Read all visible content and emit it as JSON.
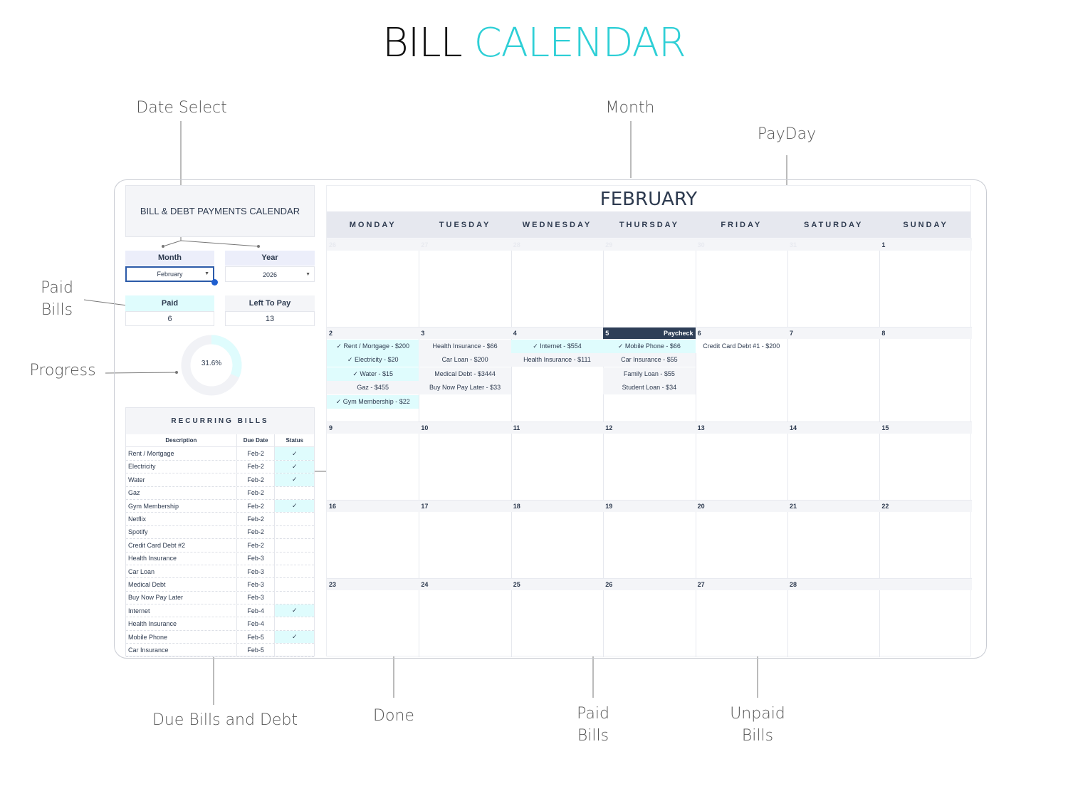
{
  "title": {
    "word1": "BILL",
    "word2": "CALENDAR"
  },
  "annotations": {
    "date_select": "Date Select",
    "month": "Month",
    "payday": "PayDay",
    "paid_bills_left": "Paid\nBills",
    "progress": "Progress",
    "due_bills": "Due Bills and Debt",
    "done": "Done",
    "paid_bills": "Paid\nBills",
    "unpaid_bills": "Unpaid\nBills"
  },
  "sidebar": {
    "heading": "BILL & DEBT PAYMENTS CALENDAR",
    "month_label": "Month",
    "month_value": "February",
    "year_label": "Year",
    "year_value": "2026",
    "paid_label": "Paid",
    "paid_value": "6",
    "left_label": "Left To Pay",
    "left_value": "13",
    "progress": "31.6%",
    "progress_fraction": 0.316,
    "recurring": {
      "title": "RECURRING BILLS",
      "headers": [
        "Description",
        "Due Date",
        "Status"
      ],
      "rows": [
        [
          "Rent / Mortgage",
          "Feb-2",
          true
        ],
        [
          "Electricity",
          "Feb-2",
          true
        ],
        [
          "Water",
          "Feb-2",
          true
        ],
        [
          "Gaz",
          "Feb-2",
          false
        ],
        [
          "Gym Membership",
          "Feb-2",
          true
        ],
        [
          "Netflix",
          "Feb-2",
          false
        ],
        [
          "Spotify",
          "Feb-2",
          false
        ],
        [
          "Credit Card Debt #2",
          "Feb-2",
          false
        ],
        [
          "Health Insurance",
          "Feb-3",
          false
        ],
        [
          "Car Loan",
          "Feb-3",
          false
        ],
        [
          "Medical Debt",
          "Feb-3",
          false
        ],
        [
          "Buy Now Pay Later",
          "Feb-3",
          false
        ],
        [
          "Internet",
          "Feb-4",
          true
        ],
        [
          "Health Insurance",
          "Feb-4",
          false
        ],
        [
          "Mobile Phone",
          "Feb-5",
          true
        ],
        [
          "Car Insurance",
          "Feb-5",
          false
        ]
      ],
      "check": "✓"
    }
  },
  "calendar": {
    "month": "FEBRUARY",
    "days": [
      "MONDAY",
      "TUESDAY",
      "WEDNESDAY",
      "THURSDAY",
      "FRIDAY",
      "SATURDAY",
      "SUNDAY"
    ],
    "weeks": [
      [
        "26",
        "27",
        "28",
        "29",
        "30",
        "31",
        "1"
      ],
      [
        "2",
        "3",
        "4",
        "5",
        "6",
        "7",
        "8"
      ],
      [
        "9",
        "10",
        "11",
        "12",
        "13",
        "14",
        "15"
      ],
      [
        "16",
        "17",
        "18",
        "19",
        "20",
        "21",
        "22"
      ],
      [
        "23",
        "24",
        "25",
        "26",
        "27",
        "28",
        ""
      ]
    ],
    "payday": {
      "day": "5",
      "label": "Paycheck"
    },
    "bills": {
      "2": [
        [
          "Rent / Mortgage - $200",
          true
        ],
        [
          "Electricity - $20",
          true
        ],
        [
          "Water - $15",
          true
        ],
        [
          "Gaz - $455",
          false
        ],
        [
          "Gym Membership - $22",
          true
        ]
      ],
      "3": [
        [
          "Health Insurance - $66",
          false
        ],
        [
          "Car Loan - $200",
          false
        ],
        [
          "Medical Debt - $3444",
          false
        ],
        [
          "Buy Now Pay Later - $33",
          false
        ]
      ],
      "4": [
        [
          "Internet - $554",
          true
        ],
        [
          "Health Insurance - $111",
          false
        ]
      ],
      "5": [
        [
          "Mobile Phone - $66",
          true
        ],
        [
          "Car Insurance - $55",
          false
        ],
        [
          "Family Loan - $55",
          false
        ],
        [
          "Student Loan - $34",
          false
        ]
      ],
      "6": [
        [
          "Credit Card Debt #1 - $200",
          false
        ]
      ]
    },
    "colors": {
      "paid": "#dffcfd",
      "unpaid": "#f4f5f8",
      "payday": "#2e3e57",
      "accent": "#2ecfd6"
    }
  }
}
